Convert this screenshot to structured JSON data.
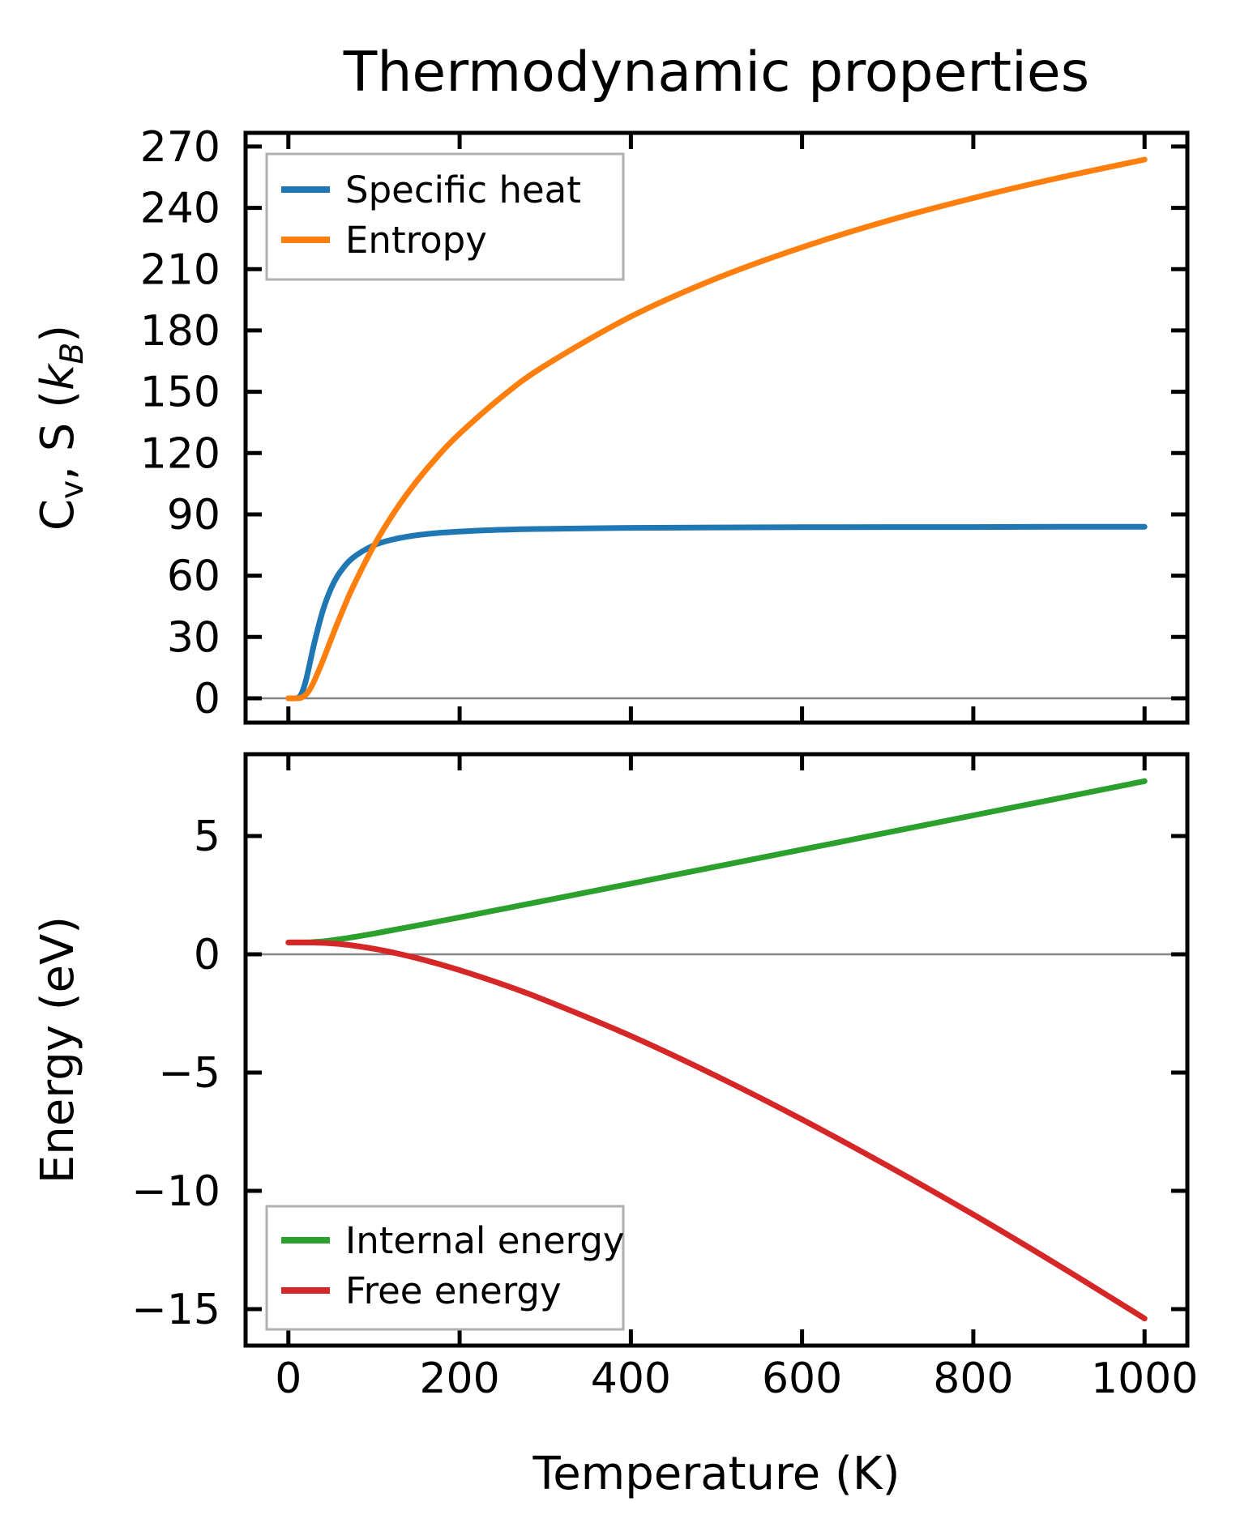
{
  "title": "Thermodynamic properties",
  "colors": {
    "specific_heat": "#1f77b4",
    "entropy": "#ff7f0e",
    "internal_energy": "#2ca02c",
    "free_energy": "#d62728",
    "spine": "#000000",
    "zero_line": "#858585",
    "legend_border": "#b0b0b0"
  },
  "x_axis": {
    "label": "Temperature (K)",
    "xlim": [
      -50,
      1050
    ],
    "ticks": [
      0,
      200,
      400,
      600,
      800,
      1000
    ],
    "tick_labels": [
      "0",
      "200",
      "400",
      "600",
      "800",
      "1000"
    ]
  },
  "chart_data": [
    {
      "type": "line",
      "title": "Thermodynamic properties",
      "ylabel": "C_v, S (k_B)",
      "ylabel_parts": {
        "c": "C",
        "v_sub": "v",
        "mid": ", S (",
        "k_it": "k",
        "b_sub": "B",
        "close": ")"
      },
      "ylim": [
        -11.9,
        276.7
      ],
      "yticks": [
        0,
        30,
        60,
        90,
        120,
        150,
        180,
        210,
        240,
        270
      ],
      "ytick_labels": [
        "0",
        "30",
        "60",
        "90",
        "120",
        "150",
        "180",
        "210",
        "240",
        "270"
      ],
      "zero_line": true,
      "grid": false,
      "show_x_tick_labels": false,
      "legend_position": "upper left",
      "x": [
        0,
        10,
        15,
        20,
        25,
        30,
        40,
        50,
        60,
        75,
        100,
        125,
        150,
        175,
        200,
        250,
        300,
        400,
        500,
        600,
        700,
        800,
        900,
        1000
      ],
      "series": [
        {
          "name": "Specific heat",
          "color_key": "specific_heat",
          "values": [
            0,
            0.1,
            2.0,
            8.0,
            17.0,
            26.5,
            42.6,
            53.9,
            61.5,
            68.6,
            74.9,
            78.0,
            79.8,
            80.9,
            81.6,
            82.5,
            82.9,
            83.4,
            83.6,
            83.7,
            83.8,
            83.8,
            83.9,
            83.9
          ]
        },
        {
          "name": "Entropy",
          "color_key": "entropy",
          "values": [
            0,
            0.01,
            0.29,
            1.6,
            4.3,
            8.3,
            18.2,
            29.0,
            39.5,
            54.1,
            74.8,
            91.9,
            106.3,
            118.7,
            129.5,
            147.8,
            162.9,
            186.8,
            205.5,
            220.7,
            233.7,
            244.8,
            254.7,
            263.6
          ]
        }
      ]
    },
    {
      "type": "line",
      "ylabel": "Energy (eV)",
      "ylim": [
        -16.54,
        8.46
      ],
      "yticks": [
        5,
        0,
        -5,
        -10,
        -15
      ],
      "ytick_labels": [
        "5",
        "0",
        "−5",
        "−10",
        "−15"
      ],
      "zero_line": true,
      "grid": false,
      "show_x_tick_labels": true,
      "legend_position": "lower left",
      "x": [
        0,
        10,
        15,
        20,
        25,
        30,
        40,
        50,
        60,
        75,
        100,
        125,
        150,
        175,
        200,
        250,
        300,
        400,
        500,
        600,
        700,
        800,
        900,
        1000
      ],
      "series": [
        {
          "name": "Internal energy",
          "color_key": "internal_energy",
          "values": [
            0.5,
            0.5,
            0.5,
            0.502,
            0.508,
            0.517,
            0.547,
            0.589,
            0.639,
            0.723,
            0.879,
            1.044,
            1.214,
            1.387,
            1.562,
            1.916,
            2.272,
            2.989,
            3.709,
            4.43,
            5.152,
            5.875,
            6.597,
            7.319
          ]
        },
        {
          "name": "Free energy",
          "color_key": "free_energy",
          "values": [
            0.5,
            0.5,
            0.5,
            0.5,
            0.498,
            0.496,
            0.485,
            0.464,
            0.435,
            0.374,
            0.234,
            0.054,
            -0.16,
            -0.403,
            -0.669,
            -1.268,
            -1.939,
            -3.45,
            -5.145,
            -6.981,
            -8.945,
            -10.999,
            -13.156,
            -15.395
          ]
        }
      ]
    }
  ]
}
